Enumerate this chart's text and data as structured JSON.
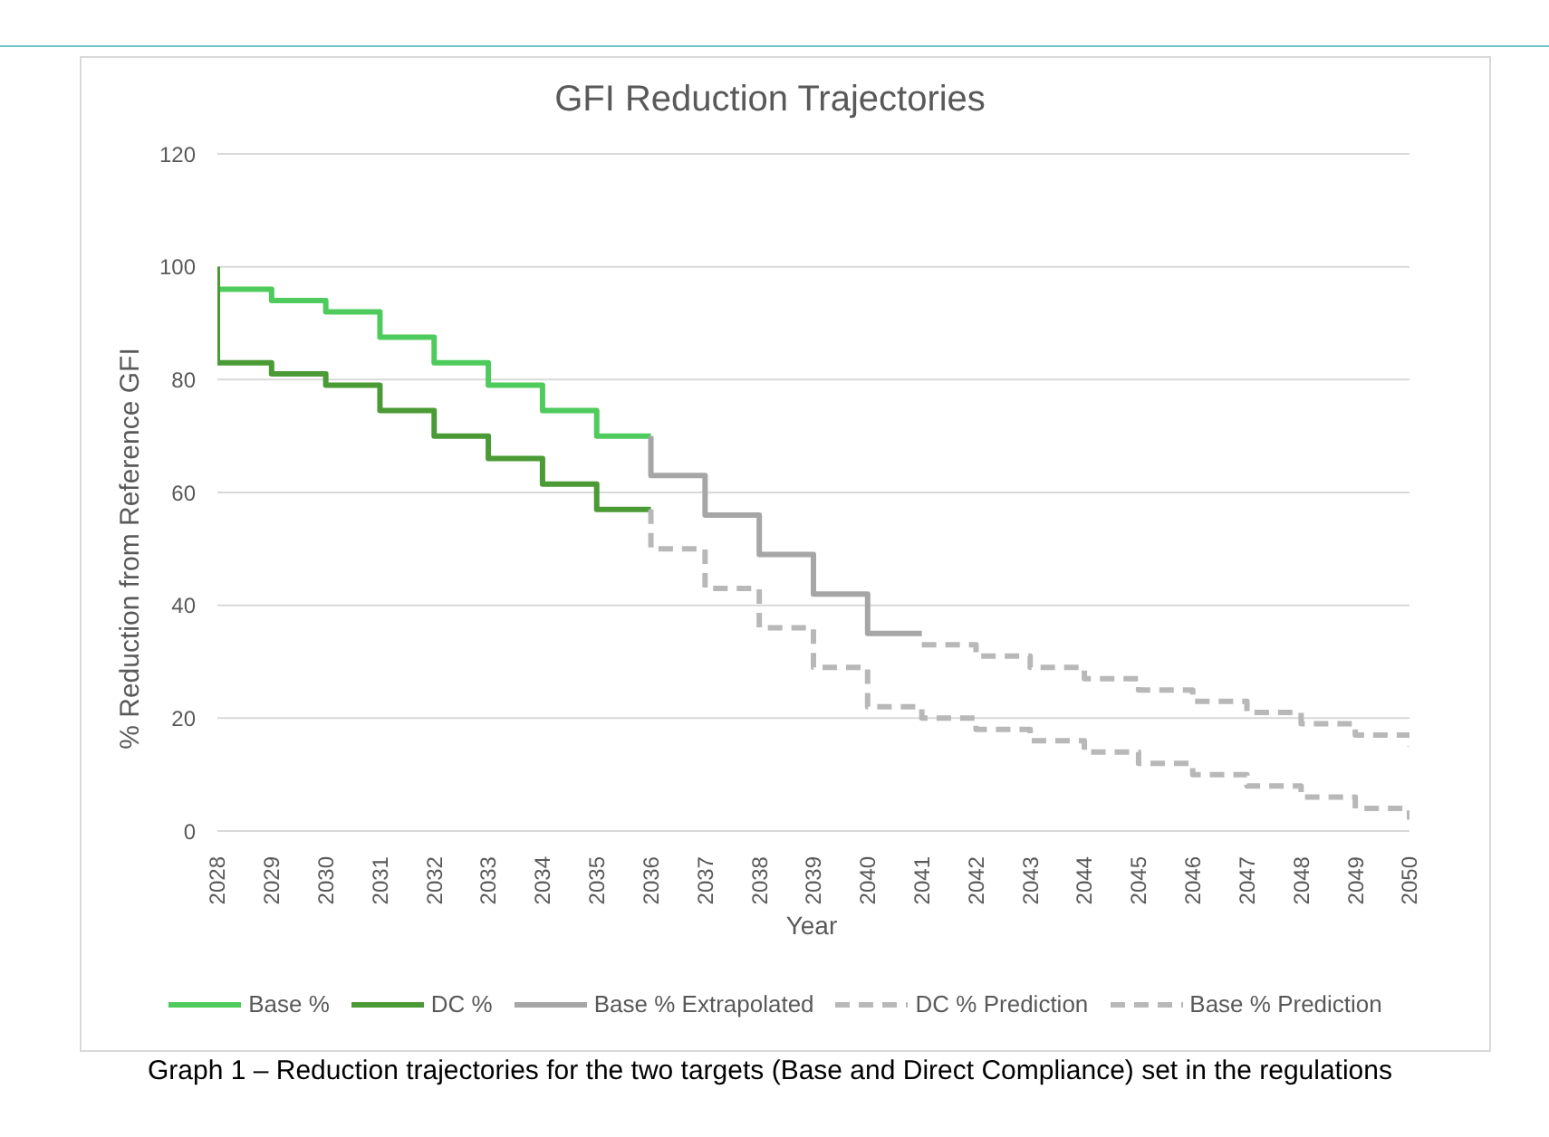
{
  "chart_data": {
    "type": "line",
    "title": "GFI Reduction Trajectories",
    "xlabel": "Year",
    "ylabel": "% Reduction from Reference GFI",
    "xlim": [
      2028,
      2050
    ],
    "xticks": [
      2028,
      2029,
      2030,
      2031,
      2032,
      2033,
      2034,
      2035,
      2036,
      2037,
      2038,
      2039,
      2040,
      2041,
      2042,
      2043,
      2044,
      2045,
      2046,
      2047,
      2048,
      2049,
      2050
    ],
    "ylim": [
      0,
      120
    ],
    "yticks": [
      0,
      20,
      40,
      60,
      80,
      100,
      120
    ],
    "grid": "y",
    "legend": "bottom",
    "marker": "none",
    "series": [
      {
        "name": "Base %",
        "color": "#4ecb5c",
        "x": [
          2028,
          2028,
          2029,
          2029,
          2030,
          2030,
          2031,
          2031,
          2032,
          2032,
          2033,
          2033,
          2034,
          2034,
          2035,
          2035,
          2036
        ],
        "values": [
          100,
          96,
          96,
          94,
          94,
          92,
          92,
          87.5,
          87.5,
          83,
          83,
          79,
          79,
          74.5,
          74.5,
          70,
          70
        ]
      },
      {
        "name": "DC %",
        "color": "#4a9a35",
        "x": [
          2028,
          2028,
          2029,
          2029,
          2030,
          2030,
          2031,
          2031,
          2032,
          2032,
          2033,
          2033,
          2034,
          2034,
          2035,
          2035,
          2036
        ],
        "values": [
          100,
          83,
          83,
          81,
          81,
          79,
          79,
          74.5,
          74.5,
          70,
          70,
          66,
          66,
          61.5,
          61.5,
          57,
          57
        ]
      },
      {
        "name": "Base % Extrapolated",
        "color": "#a6a6a6",
        "x": [
          2036,
          2036,
          2037,
          2037,
          2038,
          2038,
          2039,
          2039,
          2040,
          2040,
          2041
        ],
        "values": [
          70,
          63,
          63,
          56,
          56,
          49,
          49,
          42,
          42,
          35,
          35
        ]
      },
      {
        "name": "DC % Prediction",
        "color": "#b8b8b8",
        "line_style": "dashed",
        "x": [
          2036,
          2036,
          2037,
          2037,
          2038,
          2038,
          2039,
          2039,
          2040,
          2040,
          2041,
          2041,
          2042,
          2042,
          2043,
          2043,
          2044,
          2044,
          2045,
          2045,
          2046,
          2046,
          2047,
          2047,
          2048,
          2048,
          2049,
          2049,
          2050,
          2050
        ],
        "values": [
          57,
          50,
          50,
          43,
          43,
          36,
          36,
          29,
          29,
          22,
          22,
          20,
          20,
          18,
          18,
          16,
          16,
          14,
          14,
          12,
          12,
          10,
          10,
          8,
          8,
          6,
          6,
          4,
          4,
          2
        ]
      },
      {
        "name": "Base % Prediction",
        "color": "#b8b8b8",
        "line_style": "dashed",
        "x": [
          2041,
          2042,
          2042,
          2043,
          2043,
          2044,
          2044,
          2045,
          2045,
          2046,
          2046,
          2047,
          2047,
          2048,
          2048,
          2049,
          2049,
          2050,
          2050
        ],
        "values": [
          33,
          33,
          31,
          31,
          29,
          29,
          27,
          27,
          25,
          25,
          23,
          23,
          21,
          21,
          19,
          19,
          17,
          17,
          15
        ]
      }
    ],
    "annotations": [
      "Graph 1 – Reduction trajectories for the two targets (Base and Direct Compliance) set in the regulations"
    ]
  }
}
